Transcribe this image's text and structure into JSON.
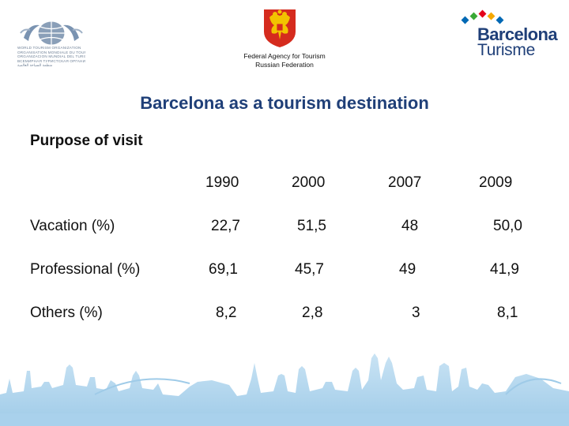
{
  "header": {
    "unwto_lines": [
      "WORLD TOURISM ORGANIZATION",
      "ORGANISATION MONDIALE DU TOURISME",
      "ORGANIZACION MUNDIAL DEL TURISMO",
      "ВСЕМИРНАЯ ТУРИСТСКАЯ ОРГАНИЗАЦИЯ",
      "منظمة السياحة العالمية"
    ],
    "agency_line1": "Federal Agency for Tourism",
    "agency_line2": "Russian Federation",
    "bcn_name": "Barcelona",
    "bcn_sub": "Turisme"
  },
  "slide": {
    "title": "Barcelona as a tourism destination",
    "subtitle": "Purpose of visit"
  },
  "table": {
    "years": [
      "1990",
      "2000",
      "2007",
      "2009"
    ],
    "rows": [
      {
        "label": "Vacation (%)",
        "values": [
          "22,7",
          "51,5",
          "48",
          "50,0"
        ]
      },
      {
        "label": "Professional (%)",
        "values": [
          "69,1",
          "45,7",
          "49",
          "41,9"
        ]
      },
      {
        "label": "Others (%)",
        "values": [
          "8,2",
          "2,8",
          "3",
          "8,1"
        ]
      }
    ]
  },
  "colors": {
    "title_blue": "#1f3f78",
    "skyline_blue": "#b4d7ee",
    "bcn_dots": [
      "#e4001b",
      "#f5a800",
      "#0068b4",
      "#3aa935"
    ]
  }
}
